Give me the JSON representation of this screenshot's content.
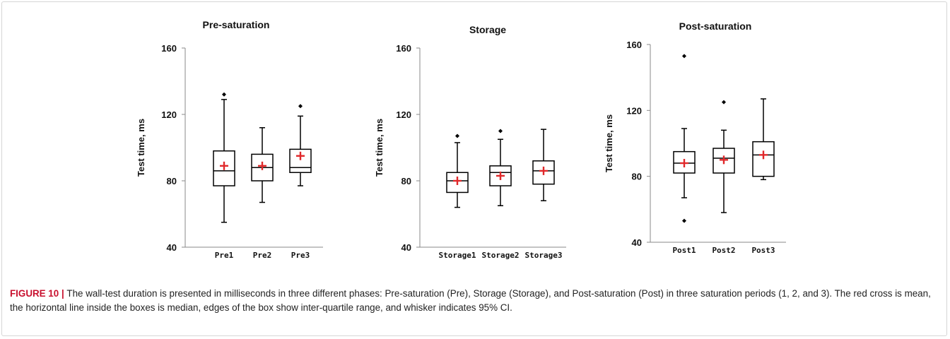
{
  "colors": {
    "mean_marker": "#e0282a",
    "box_stroke": "#000000",
    "caption_label": "#c8102e",
    "frame_border": "#d5d5d5"
  },
  "caption": {
    "label": "FIGURE 10",
    "separator": "|",
    "text": "The wall-test duration is presented in milliseconds in three different phases: Pre-saturation (Pre), Storage (Storage), and Post-saturation (Post) in three saturation periods (1, 2, and 3). The red cross is mean, the horizontal line inside the boxes is median, edges of the box show inter-quartile range, and whisker indicates 95% CI."
  },
  "chart_data": [
    {
      "type": "box",
      "title": "Pre-saturation",
      "ylabel": "Test time, ms",
      "ylim": [
        40,
        160
      ],
      "yticks": [
        "40",
        "80",
        "120",
        "160"
      ],
      "categories": [
        "Pre1",
        "Pre2",
        "Pre3"
      ],
      "boxes": [
        {
          "whisker_low": 55,
          "q1": 77,
          "median": 86,
          "q3": 98,
          "whisker_high": 129,
          "mean": 89,
          "outliers": [
            132
          ]
        },
        {
          "whisker_low": 67,
          "q1": 80,
          "median": 88,
          "q3": 96,
          "whisker_high": 112,
          "mean": 89,
          "outliers": []
        },
        {
          "whisker_low": 77,
          "q1": 85,
          "median": 88,
          "q3": 99,
          "whisker_high": 119,
          "mean": 95,
          "outliers": [
            125
          ]
        }
      ]
    },
    {
      "type": "box",
      "title": "Storage",
      "ylabel": "Test time, ms",
      "ylim": [
        40,
        160
      ],
      "yticks": [
        "40",
        "80",
        "120",
        "160"
      ],
      "categories": [
        "Storage1",
        "Storage2",
        "Storage3"
      ],
      "boxes": [
        {
          "whisker_low": 64,
          "q1": 73,
          "median": 80,
          "q3": 85,
          "whisker_high": 103,
          "mean": 80,
          "outliers": [
            107
          ]
        },
        {
          "whisker_low": 65,
          "q1": 77,
          "median": 85,
          "q3": 89,
          "whisker_high": 105,
          "mean": 83,
          "outliers": [
            110
          ]
        },
        {
          "whisker_low": 68,
          "q1": 78,
          "median": 86,
          "q3": 92,
          "whisker_high": 111,
          "mean": 86,
          "outliers": []
        }
      ]
    },
    {
      "type": "box",
      "title": "Post-saturation",
      "ylabel": "Test time, ms",
      "ylim": [
        40,
        160
      ],
      "yticks": [
        "40",
        "80",
        "120",
        "160"
      ],
      "categories": [
        "Post1",
        "Post2",
        "Post3"
      ],
      "boxes": [
        {
          "whisker_low": 67,
          "q1": 82,
          "median": 88,
          "q3": 95,
          "whisker_high": 109,
          "mean": 88,
          "outliers": [
            53,
            153
          ]
        },
        {
          "whisker_low": 58,
          "q1": 82,
          "median": 91,
          "q3": 97,
          "whisker_high": 108,
          "mean": 90,
          "outliers": [
            125
          ]
        },
        {
          "whisker_low": 78,
          "q1": 80,
          "median": 93,
          "q3": 101,
          "whisker_high": 127,
          "mean": 93,
          "outliers": []
        }
      ]
    }
  ]
}
